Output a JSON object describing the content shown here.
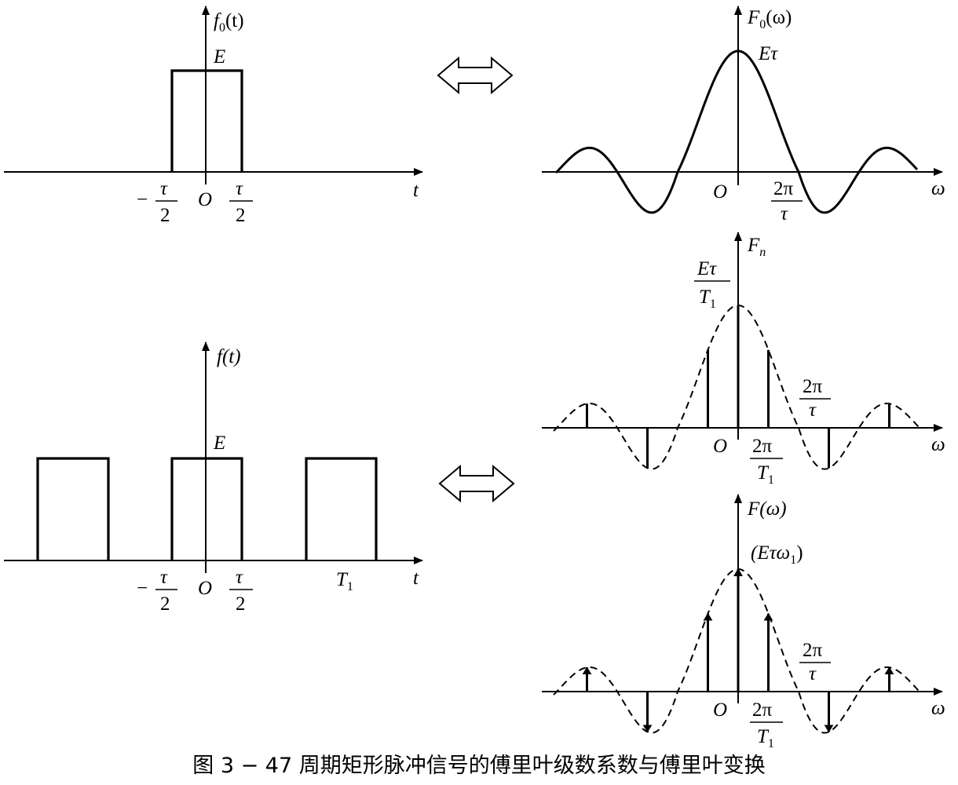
{
  "panels": {
    "single_time": {
      "f_label": "f",
      "f_sub": "0",
      "f_arg": "(t)",
      "amp": "E",
      "x_axis": "t",
      "tick_neg": "−",
      "tau": "τ",
      "two": "2",
      "origin": "O"
    },
    "single_freq": {
      "F_label": "F",
      "F_sub": "0",
      "F_arg": "(ω)",
      "peak": "Eτ",
      "origin": "O",
      "tick_num": "2π",
      "tick_den": "τ",
      "x_axis": "ω"
    },
    "periodic_time": {
      "f_label": "f(t)",
      "amp": "E",
      "x_axis": "t",
      "tick_neg": "−",
      "tau": "τ",
      "two": "2",
      "origin": "O",
      "period": "T",
      "period_sub": "1"
    },
    "fn_spectrum": {
      "F_label": "F",
      "F_sub": "n",
      "peak_num": "Eτ",
      "peak_den": "T",
      "peak_den_sub": "1",
      "zero_num": "2π",
      "zero_den": "τ",
      "origin": "O",
      "tick_num": "2π",
      "tick_den": "T",
      "tick_den_sub": "1",
      "x_axis": "ω"
    },
    "f_spectrum": {
      "F_label": "F(ω)",
      "peak_a": "(Eτω",
      "peak_sub": "1",
      "peak_b": ")",
      "zero_num": "2π",
      "zero_den": "τ",
      "origin": "O",
      "tick_num": "2π",
      "tick_den": "T",
      "tick_den_sub": "1",
      "x_axis": "ω"
    }
  },
  "caption": "图 3 − 47   周期矩形脉冲信号的傅里叶级数系数与傅里叶变换"
}
